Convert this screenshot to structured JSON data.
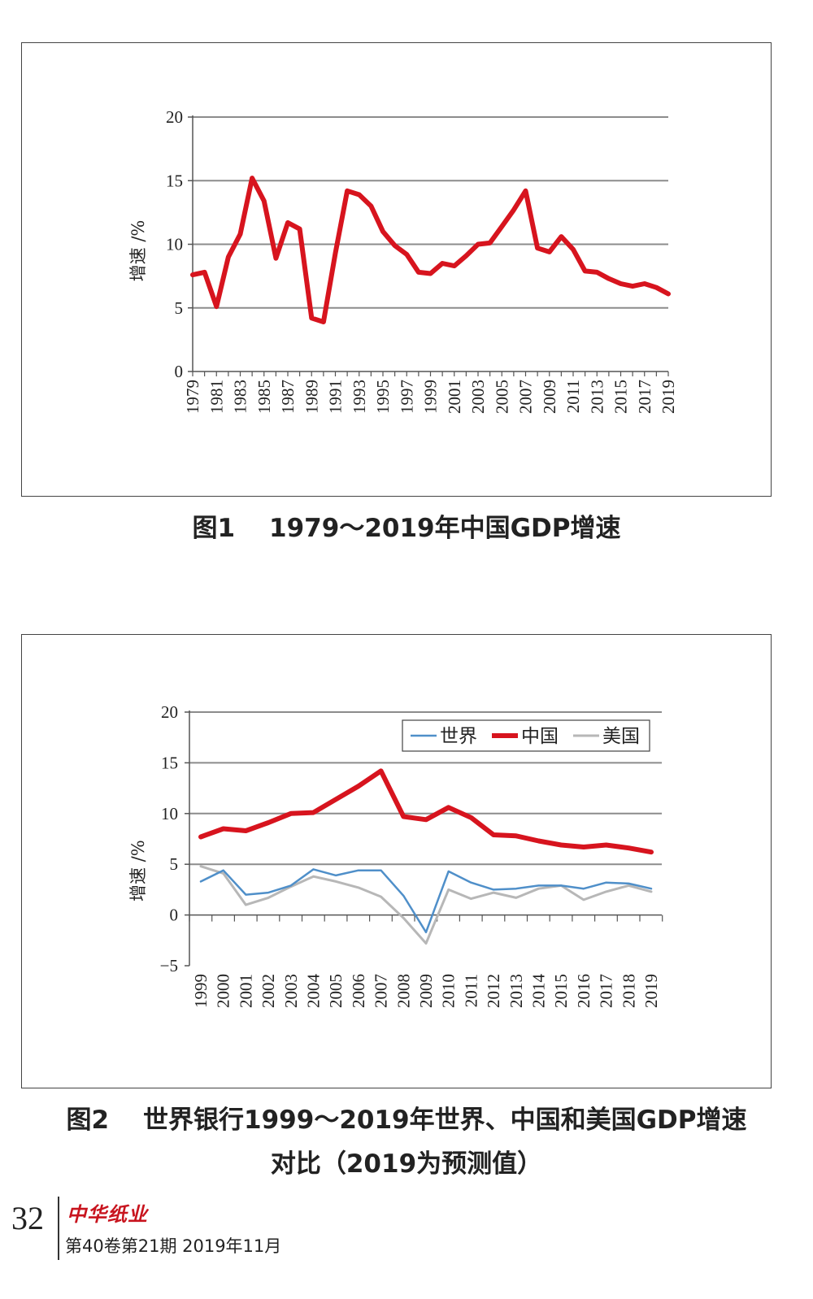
{
  "captions": {
    "fig1": {
      "label": "图1",
      "text": "1979～2019年中国GDP增速"
    },
    "fig2": {
      "label": "图2",
      "text_line1": "世界银行1999～2019年世界、中国和美国GDP增速",
      "text_line2": "对比（2019为预测值）"
    }
  },
  "footer": {
    "page_number": "32",
    "journal": "中华纸业",
    "issue": "第40卷第21期  2019年11月"
  },
  "colors": {
    "china": "#d7141e",
    "world": "#4f8fc9",
    "usa": "#b7b7b7",
    "grid": "#8c8c8c"
  },
  "chart_data": [
    {
      "type": "line",
      "title": "1979～2019年中国GDP增速",
      "ylabel": "增速 /%",
      "xlabel": "",
      "ylim": [
        0,
        20
      ],
      "yticks": [
        0,
        5,
        10,
        15,
        20
      ],
      "xtick_labels": [
        "1979",
        "1981",
        "1983",
        "1985",
        "1987",
        "1989",
        "1991",
        "1993",
        "1995",
        "1997",
        "1999",
        "2001",
        "2003",
        "2005",
        "2007",
        "2009",
        "2011",
        "2013",
        "2015",
        "2017",
        "2019"
      ],
      "x": [
        1979,
        1980,
        1981,
        1982,
        1983,
        1984,
        1985,
        1986,
        1987,
        1988,
        1989,
        1990,
        1991,
        1992,
        1993,
        1994,
        1995,
        1996,
        1997,
        1998,
        1999,
        2000,
        2001,
        2002,
        2003,
        2004,
        2005,
        2006,
        2007,
        2008,
        2009,
        2010,
        2011,
        2012,
        2013,
        2014,
        2015,
        2016,
        2017,
        2018,
        2019
      ],
      "series": [
        {
          "name": "中国",
          "values": [
            7.6,
            7.8,
            5.1,
            9.0,
            10.8,
            15.2,
            13.4,
            8.9,
            11.7,
            11.2,
            4.2,
            3.9,
            9.3,
            14.2,
            13.9,
            13.0,
            11.0,
            9.9,
            9.2,
            7.8,
            7.7,
            8.5,
            8.3,
            9.1,
            10.0,
            10.1,
            11.4,
            12.7,
            14.2,
            9.7,
            9.4,
            10.6,
            9.6,
            7.9,
            7.8,
            7.3,
            6.9,
            6.7,
            6.9,
            6.6,
            6.1
          ]
        }
      ]
    },
    {
      "type": "line",
      "title": "世界银行1999～2019年世界、中国和美国GDP增速对比（2019为预测值）",
      "ylabel": "增速 /%",
      "xlabel": "",
      "ylim": [
        -5,
        20
      ],
      "yticks": [
        -5,
        0,
        5,
        10,
        15,
        20
      ],
      "legend_position": "top-right",
      "x": [
        "1999",
        "2000",
        "2001",
        "2002",
        "2003",
        "2004",
        "2005",
        "2006",
        "2007",
        "2008",
        "2009",
        "2010",
        "2011",
        "2012",
        "2013",
        "2014",
        "2015",
        "2016",
        "2017",
        "2018",
        "2019"
      ],
      "series": [
        {
          "name": "世界",
          "values": [
            3.3,
            4.4,
            2.0,
            2.2,
            2.9,
            4.5,
            3.9,
            4.4,
            4.4,
            1.9,
            -1.7,
            4.3,
            3.2,
            2.5,
            2.6,
            2.9,
            2.9,
            2.6,
            3.2,
            3.1,
            2.6
          ]
        },
        {
          "name": "中国",
          "values": [
            7.7,
            8.5,
            8.3,
            9.1,
            10.0,
            10.1,
            11.4,
            12.7,
            14.2,
            9.7,
            9.4,
            10.6,
            9.6,
            7.9,
            7.8,
            7.3,
            6.9,
            6.7,
            6.9,
            6.6,
            6.2
          ]
        },
        {
          "name": "美国",
          "values": [
            4.8,
            4.1,
            1.0,
            1.7,
            2.8,
            3.8,
            3.3,
            2.7,
            1.8,
            -0.3,
            -2.8,
            2.5,
            1.6,
            2.2,
            1.7,
            2.6,
            2.9,
            1.5,
            2.3,
            2.9,
            2.3
          ]
        }
      ]
    }
  ]
}
